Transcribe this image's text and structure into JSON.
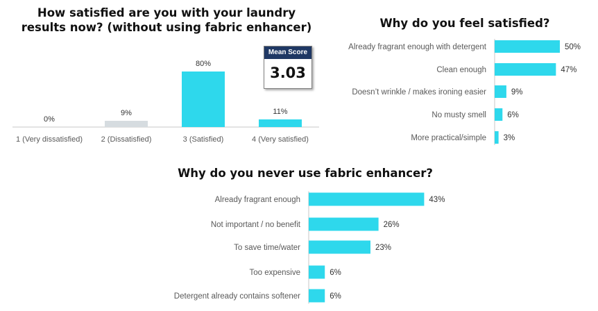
{
  "colors": {
    "bar": "#2ed8ec",
    "bar_muted": "#d6dce0",
    "axis": "#c7c7c7",
    "label": "#595959",
    "value": "#333333"
  },
  "chart_data": [
    {
      "type": "bar",
      "title": "How satisfied are you with your laundry results now? (without using fabric enhancer)",
      "categories": [
        "1 (Very dissatisfied)",
        "2 (Dissatisfied)",
        "3 (Satisfied)",
        "4 (Very satisfied)"
      ],
      "values": [
        0,
        9,
        80,
        11
      ],
      "value_labels": [
        "0%",
        "9%",
        "80%",
        "11%"
      ],
      "mean_score_label": "Mean Score",
      "mean_score_value": "3.03"
    },
    {
      "type": "bar",
      "orientation": "horizontal",
      "title": "Why do you feel satisfied?",
      "categories": [
        "Already fragrant enough with detergent",
        "Clean enough",
        "Doesn’t wrinkle / makes ironing easier",
        "No musty smell",
        "More practical/simple"
      ],
      "values": [
        50,
        47,
        9,
        6,
        3
      ],
      "value_labels": [
        "50%",
        "47%",
        "9%",
        "6%",
        "3%"
      ]
    },
    {
      "type": "bar",
      "orientation": "horizontal",
      "title": "Why do you never use fabric enhancer?",
      "categories": [
        "Already fragrant enough",
        "Not important / no benefit",
        "To save time/water",
        "Too expensive",
        "Detergent already contains softener"
      ],
      "values": [
        43,
        26,
        23,
        6,
        6
      ],
      "value_labels": [
        "43%",
        "26%",
        "23%",
        "6%",
        "6%"
      ]
    }
  ]
}
